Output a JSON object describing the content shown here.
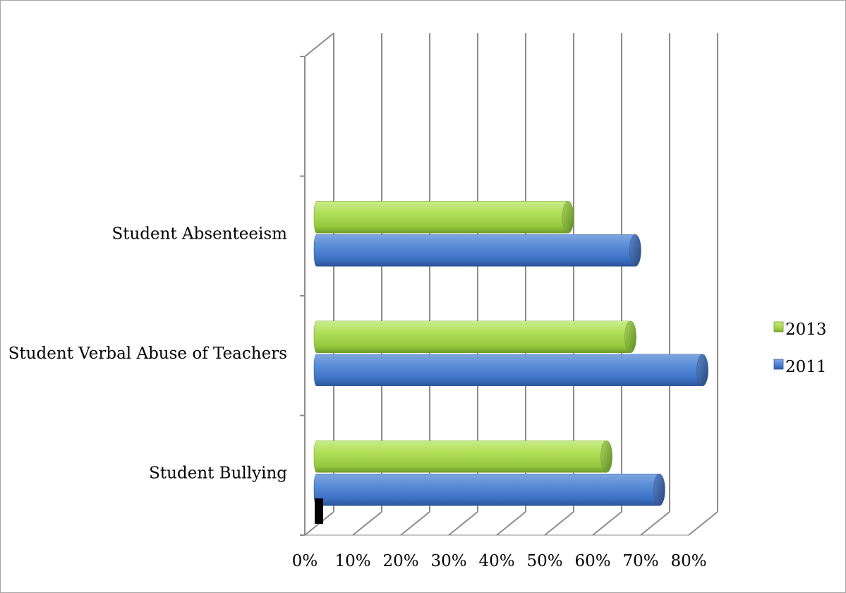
{
  "chart_data": {
    "type": "bar",
    "orientation": "horizontal",
    "style": "3d-cylinder",
    "categories": [
      "Student Bullying",
      "Student Verbal Abuse of Teachers",
      "Student Absenteeism"
    ],
    "series": [
      {
        "name": "2011",
        "values": [
          68,
          77,
          63
        ],
        "color": "#4f81bd"
      },
      {
        "name": "2013",
        "values": [
          57,
          62,
          49
        ],
        "color": "#9bbb59"
      }
    ],
    "xlim": [
      0,
      80
    ],
    "xticks": [
      "0%",
      "10%",
      "20%",
      "30%",
      "40%",
      "50%",
      "60%",
      "70%",
      "80%"
    ],
    "grid": true,
    "legend": "right",
    "title": "",
    "xlabel": "",
    "ylabel": ""
  }
}
